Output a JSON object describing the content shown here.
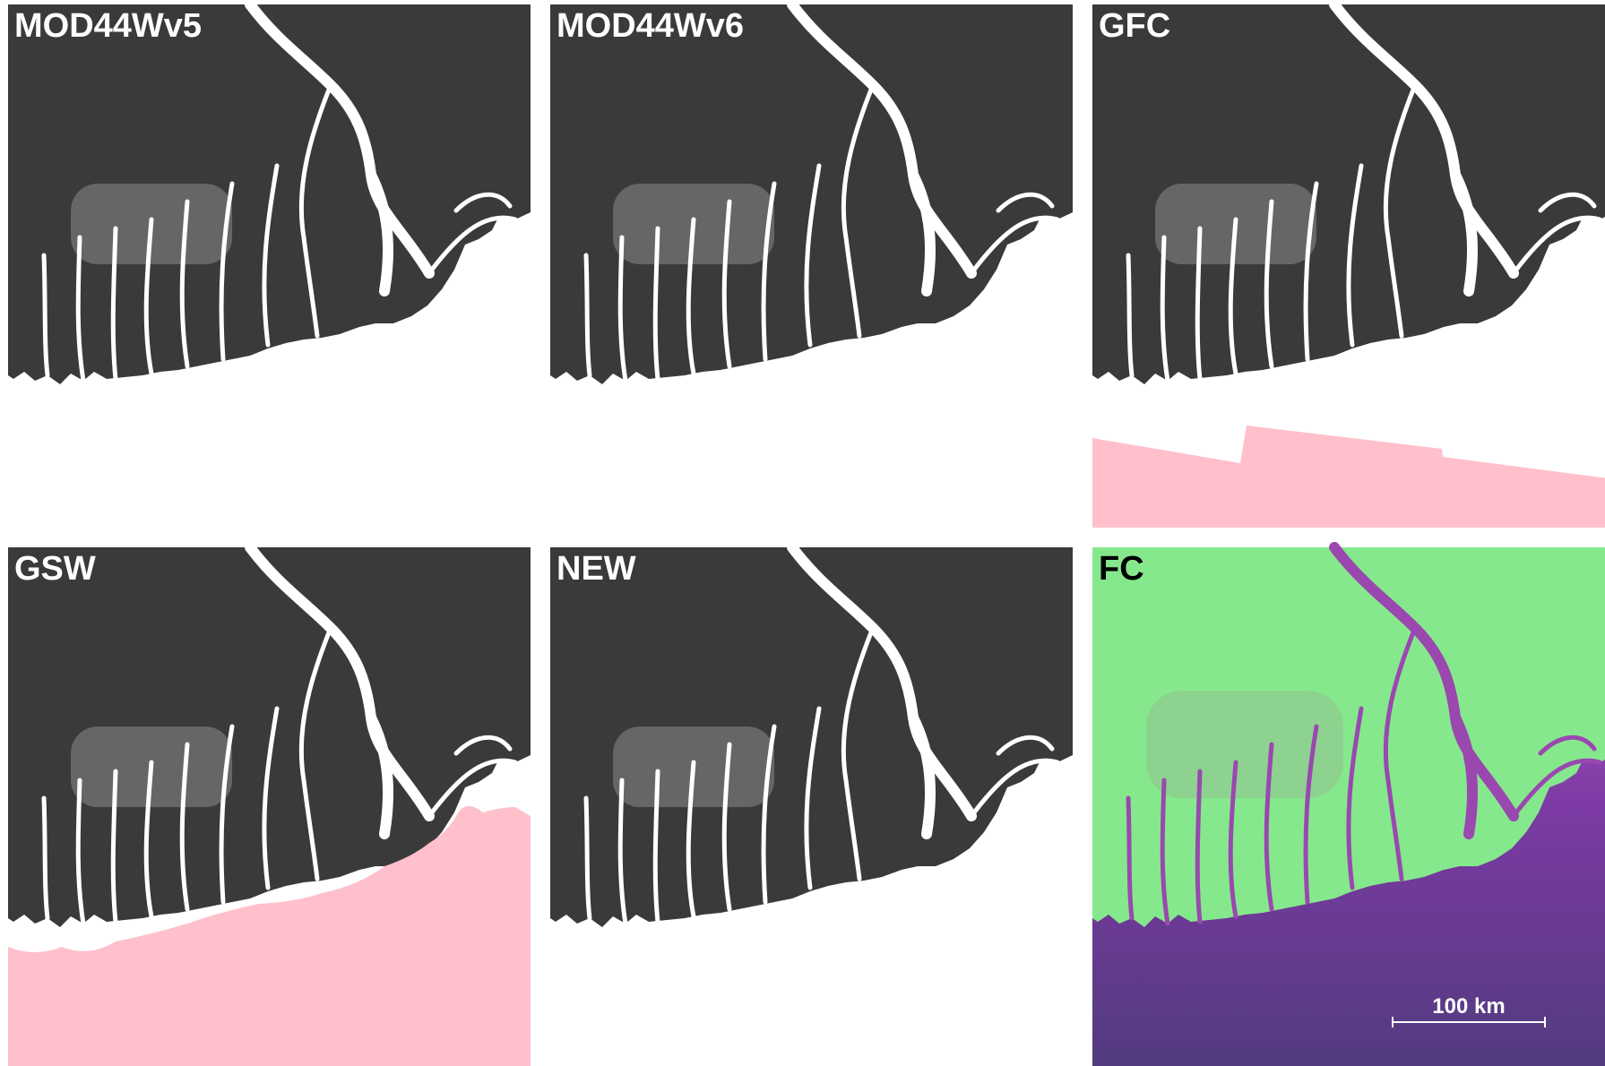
{
  "panels": [
    {
      "label": "MOD44Wv5",
      "style": "mask"
    },
    {
      "label": "MOD44Wv6",
      "style": "mask"
    },
    {
      "label": "GFC",
      "style": "mask-gfc"
    },
    {
      "label": "GSW",
      "style": "mask-gsw"
    },
    {
      "label": "NEW",
      "style": "mask"
    },
    {
      "label": "FC",
      "style": "false-color"
    }
  ],
  "scale_bar": {
    "label": "100 km"
  }
}
